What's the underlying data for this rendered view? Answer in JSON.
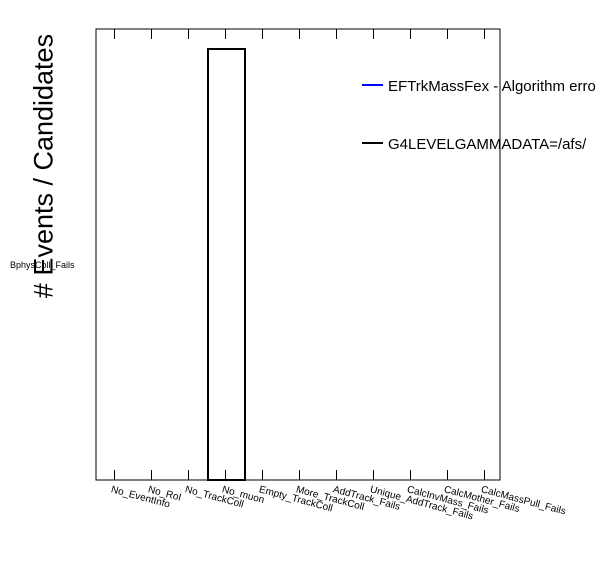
{
  "chart_data": {
    "type": "bar",
    "ylabel": "# Events / Candidates",
    "stray_label": "BphysColl_Fails",
    "categories": [
      "No_EventInfo",
      "No_RoI",
      "No_TrackColl",
      "No_muon",
      "Empty_TrackColl",
      "More_TrackColl",
      "AddTrack_Fails",
      "Unique_AddTrack_Fails",
      "CalcInvMass_Fails",
      "CalcMother_Fails",
      "CalcMassPull_Fails"
    ],
    "series": [
      {
        "name": "EFTrkMassFex - Algorithm errors",
        "color": "#0000ff",
        "values": [
          0,
          0,
          0,
          0,
          0,
          0,
          0,
          0,
          0,
          0,
          0
        ]
      },
      {
        "name": "G4LEVELGAMMADATA=/afs/",
        "color": "#000000",
        "values": [
          0,
          0,
          0,
          1,
          0,
          0,
          0,
          0,
          0,
          0,
          0
        ]
      }
    ],
    "grid": false,
    "legend": "top-right"
  }
}
